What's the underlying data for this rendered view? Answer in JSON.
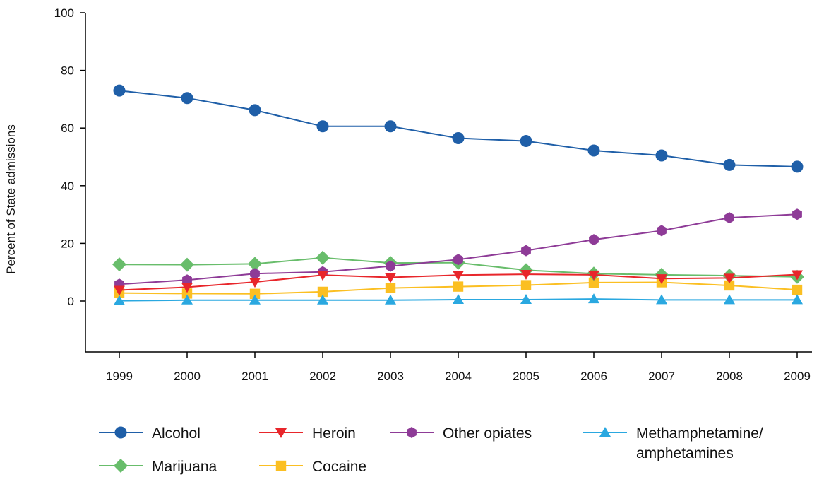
{
  "chart_data": {
    "type": "line",
    "title": "",
    "xlabel": "",
    "ylabel": "Percent of State admissions",
    "x": [
      "1999",
      "2000",
      "2001",
      "2002",
      "2003",
      "2004",
      "2005",
      "2006",
      "2007",
      "2008",
      "2009"
    ],
    "yticks": [
      "100",
      "80",
      "60",
      "40",
      "20",
      "0"
    ],
    "ylim": [
      -18,
      100
    ],
    "grid": false,
    "legend_position": "bottom",
    "series": [
      {
        "name": "Alcohol",
        "color": "#1f5fa8",
        "marker": "circle",
        "values": [
          73.0,
          70.4,
          66.2,
          60.6,
          60.6,
          56.5,
          55.5,
          52.2,
          50.5,
          47.2,
          46.6
        ]
      },
      {
        "name": "Heroin",
        "color": "#e8262b",
        "marker": "triangle-down",
        "values": [
          3.8,
          4.8,
          6.6,
          9.0,
          8.2,
          9.0,
          9.3,
          9.1,
          7.8,
          8.0,
          9.2
        ]
      },
      {
        "name": "Other opiates",
        "color": "#8e3b97",
        "marker": "hexagon",
        "values": [
          5.8,
          7.3,
          9.5,
          10.1,
          12.1,
          14.4,
          17.5,
          21.3,
          24.4,
          28.9,
          30.1
        ]
      },
      {
        "name": "Methamphetamine/\namphetamines",
        "color": "#2aa8e0",
        "marker": "triangle-up",
        "values": [
          0.1,
          0.3,
          0.3,
          0.3,
          0.3,
          0.5,
          0.5,
          0.7,
          0.4,
          0.4,
          0.4
        ]
      },
      {
        "name": "Marijuana",
        "color": "#68bd6b",
        "marker": "diamond",
        "values": [
          12.7,
          12.6,
          12.9,
          15.0,
          13.2,
          13.3,
          10.7,
          9.5,
          9.1,
          8.8,
          8.4
        ]
      },
      {
        "name": "Cocaine",
        "color": "#fbbf22",
        "marker": "square",
        "values": [
          2.8,
          2.6,
          2.5,
          3.2,
          4.5,
          5.0,
          5.5,
          6.4,
          6.5,
          5.4,
          3.9
        ]
      }
    ]
  }
}
